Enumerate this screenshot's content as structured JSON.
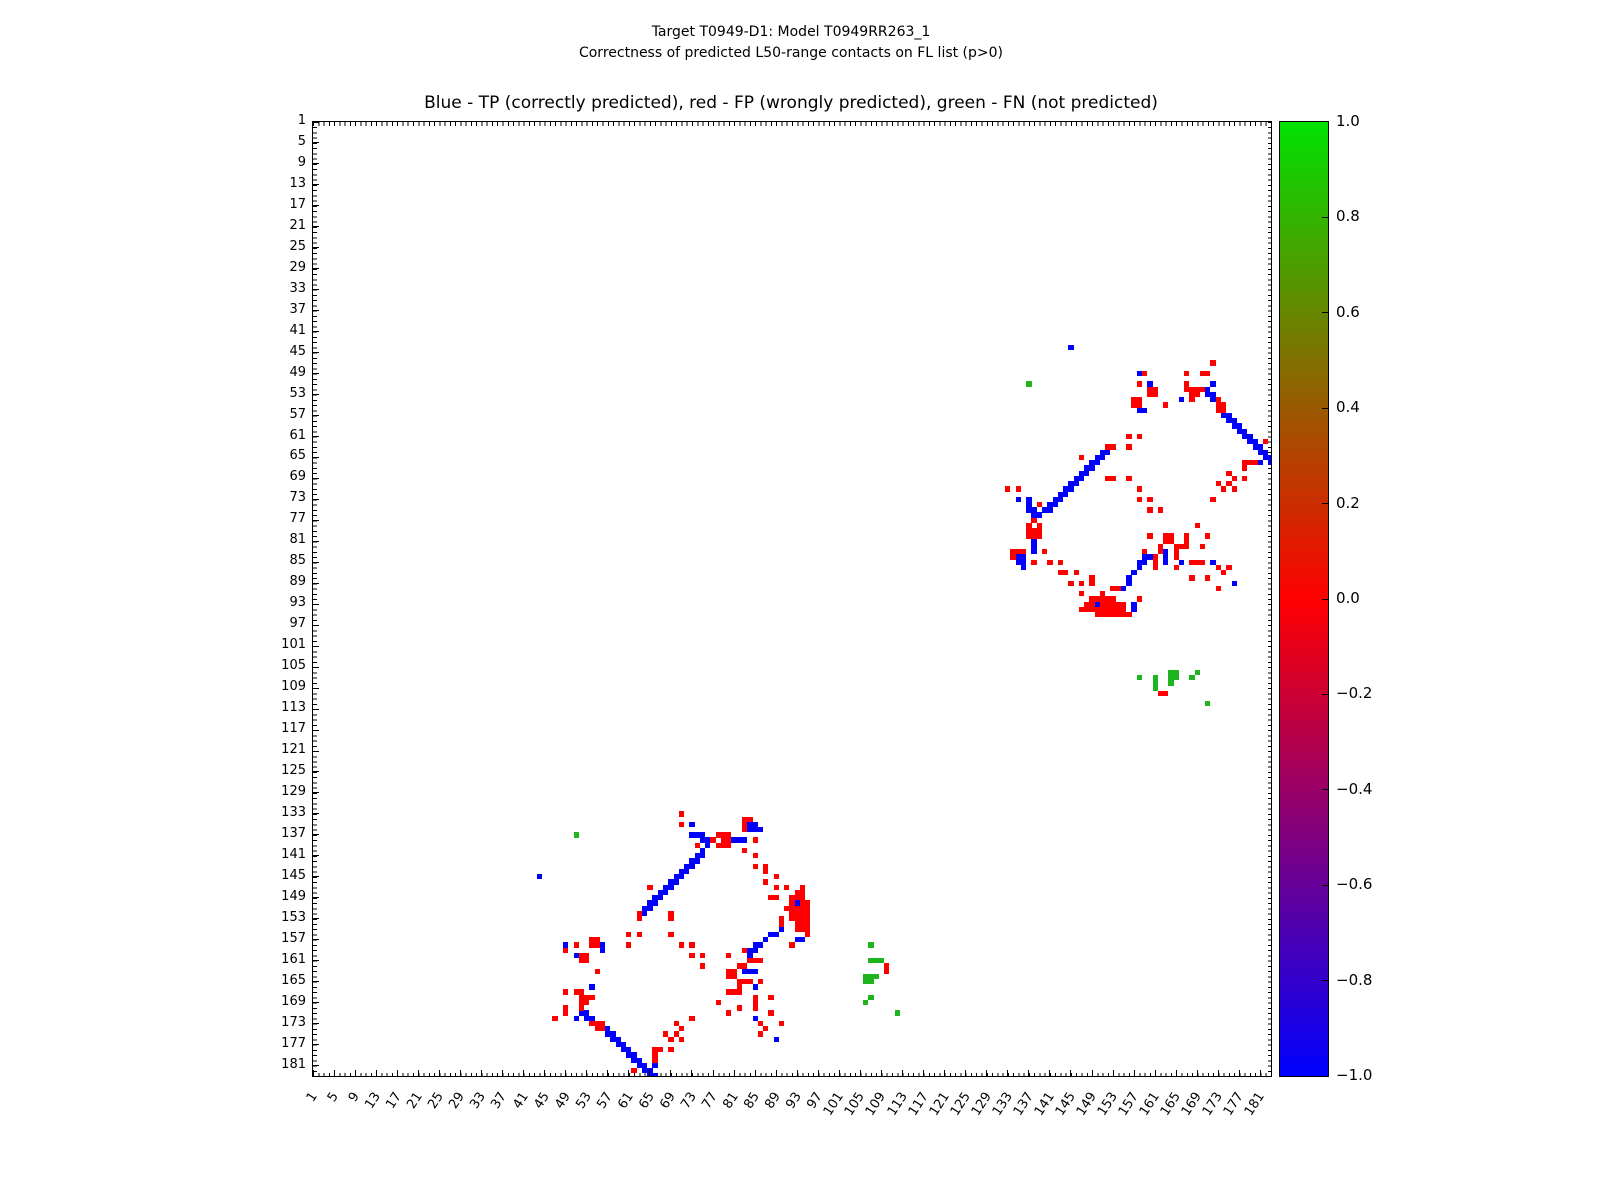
{
  "figure": {
    "suptitle_line1": "Target T0949-D1: Model T0949RR263_1",
    "suptitle_line2": "Correctness of predicted L50-range contacts on FL list (p>0)",
    "axes_title": "Blue - TP (correctly predicted), red - FP (wrongly predicted), green - FN (not predicted)"
  },
  "chart_data": {
    "type": "heatmap",
    "title": "Blue - TP (correctly predicted), red - FP (wrongly predicted), green - FN (not predicted)",
    "xlabel": "",
    "ylabel": "",
    "axis_range": [
      1,
      183
    ],
    "grid": false,
    "symmetric": true,
    "x_tick_labels": [
      1,
      5,
      9,
      13,
      17,
      21,
      25,
      29,
      33,
      37,
      41,
      45,
      49,
      53,
      57,
      61,
      65,
      69,
      73,
      77,
      81,
      85,
      89,
      93,
      97,
      101,
      105,
      109,
      113,
      117,
      121,
      125,
      129,
      133,
      137,
      141,
      145,
      149,
      153,
      157,
      161,
      165,
      169,
      173,
      177,
      181
    ],
    "y_tick_labels": [
      1,
      5,
      9,
      13,
      17,
      21,
      25,
      29,
      33,
      37,
      41,
      45,
      49,
      53,
      57,
      61,
      65,
      69,
      73,
      77,
      81,
      85,
      89,
      93,
      97,
      101,
      105,
      109,
      113,
      117,
      121,
      125,
      129,
      133,
      137,
      141,
      145,
      149,
      153,
      157,
      161,
      165,
      169,
      173,
      177,
      181
    ],
    "colors": {
      "tp": "#0000ff",
      "fp": "#ff0000",
      "fn": "#1eb41e"
    },
    "classes": {
      "tp": "TP (correctly predicted)",
      "fp": "FP (wrongly predicted)",
      "fn": "FN (not predicted)"
    },
    "colorbar": {
      "min": -1.0,
      "max": 1.0,
      "tick_labels": [
        "1.0",
        "0.8",
        "0.6",
        "0.4",
        "0.2",
        "0.0",
        "−0.2",
        "−0.4",
        "−0.6",
        "−0.8",
        "−1.0"
      ],
      "tick_values": [
        1.0,
        0.8,
        0.6,
        0.4,
        0.2,
        0.0,
        -0.2,
        -0.4,
        -0.6,
        -0.8,
        -1.0
      ],
      "top_color": "#00e100",
      "mid_color": "#ff0000",
      "bottom_color": "#0000ff"
    },
    "contacts": {
      "tp": [
        [
          44,
          145
        ],
        [
          49,
          158
        ],
        [
          51,
          160
        ],
        [
          56,
          158
        ],
        [
          56,
          159
        ],
        [
          51,
          172
        ],
        [
          52,
          171
        ],
        [
          53,
          171
        ],
        [
          53,
          172
        ],
        [
          54,
          172
        ],
        [
          54,
          166
        ],
        [
          57,
          174
        ],
        [
          57,
          175
        ],
        [
          58,
          175
        ],
        [
          58,
          176
        ],
        [
          59,
          176
        ],
        [
          59,
          177
        ],
        [
          60,
          177
        ],
        [
          60,
          178
        ],
        [
          61,
          178
        ],
        [
          61,
          179
        ],
        [
          62,
          179
        ],
        [
          62,
          180
        ],
        [
          63,
          180
        ],
        [
          63,
          181
        ],
        [
          64,
          181
        ],
        [
          64,
          182
        ],
        [
          65,
          182
        ],
        [
          65,
          183
        ],
        [
          66,
          181
        ],
        [
          66,
          183
        ],
        [
          64,
          151
        ],
        [
          64,
          152
        ],
        [
          65,
          150
        ],
        [
          65,
          151
        ],
        [
          66,
          149
        ],
        [
          66,
          150
        ],
        [
          67,
          148
        ],
        [
          67,
          149
        ],
        [
          68,
          147
        ],
        [
          68,
          148
        ],
        [
          69,
          146
        ],
        [
          69,
          147
        ],
        [
          70,
          145
        ],
        [
          70,
          146
        ],
        [
          71,
          144
        ],
        [
          71,
          145
        ],
        [
          72,
          143
        ],
        [
          72,
          144
        ],
        [
          73,
          142
        ],
        [
          73,
          143
        ],
        [
          74,
          141
        ],
        [
          74,
          142
        ],
        [
          75,
          140
        ],
        [
          75,
          141
        ],
        [
          73,
          135
        ],
        [
          73,
          137
        ],
        [
          74,
          137
        ],
        [
          75,
          137
        ],
        [
          75,
          138
        ],
        [
          76,
          138
        ],
        [
          76,
          139
        ],
        [
          81,
          138
        ],
        [
          82,
          138
        ],
        [
          83,
          138
        ],
        [
          84,
          135
        ],
        [
          84,
          136
        ],
        [
          85,
          135
        ],
        [
          85,
          136
        ],
        [
          86,
          136
        ],
        [
          83,
          163
        ],
        [
          84,
          163
        ],
        [
          85,
          163
        ],
        [
          85,
          166
        ],
        [
          85,
          172
        ],
        [
          89,
          176
        ],
        [
          84,
          159
        ],
        [
          84,
          160
        ],
        [
          85,
          158
        ],
        [
          85,
          159
        ],
        [
          86,
          158
        ],
        [
          87,
          157
        ],
        [
          88,
          156
        ],
        [
          89,
          156
        ],
        [
          90,
          155
        ],
        [
          93,
          150
        ],
        [
          93,
          157
        ],
        [
          94,
          157
        ]
      ],
      "fp": [
        [
          49,
          159
        ],
        [
          51,
          158
        ],
        [
          52,
          160
        ],
        [
          52,
          161
        ],
        [
          53,
          160
        ],
        [
          53,
          161
        ],
        [
          54,
          157
        ],
        [
          54,
          158
        ],
        [
          55,
          157
        ],
        [
          55,
          158
        ],
        [
          61,
          156
        ],
        [
          61,
          158
        ],
        [
          63,
          156
        ],
        [
          69,
          153
        ],
        [
          69,
          156
        ],
        [
          71,
          158
        ],
        [
          73,
          158
        ],
        [
          73,
          160
        ],
        [
          75,
          160
        ],
        [
          75,
          162
        ],
        [
          55,
          163
        ],
        [
          47,
          172
        ],
        [
          49,
          167
        ],
        [
          49,
          170
        ],
        [
          49,
          171
        ],
        [
          51,
          167
        ],
        [
          52,
          167
        ],
        [
          52,
          168
        ],
        [
          52,
          169
        ],
        [
          52,
          170
        ],
        [
          53,
          168
        ],
        [
          53,
          169
        ],
        [
          54,
          168
        ],
        [
          54,
          173
        ],
        [
          55,
          173
        ],
        [
          55,
          174
        ],
        [
          56,
          173
        ],
        [
          56,
          174
        ],
        [
          62,
          182
        ],
        [
          66,
          178
        ],
        [
          66,
          179
        ],
        [
          66,
          180
        ],
        [
          67,
          178
        ],
        [
          68,
          175
        ],
        [
          69,
          176
        ],
        [
          69,
          178
        ],
        [
          70,
          173
        ],
        [
          70,
          175
        ],
        [
          71,
          174
        ],
        [
          71,
          176
        ],
        [
          73,
          172
        ],
        [
          63,
          152
        ],
        [
          63,
          153
        ],
        [
          65,
          147
        ],
        [
          69,
          152
        ],
        [
          74,
          139
        ],
        [
          71,
          133
        ],
        [
          71,
          135
        ],
        [
          77,
          138
        ],
        [
          78,
          137
        ],
        [
          78,
          139
        ],
        [
          79,
          137
        ],
        [
          79,
          138
        ],
        [
          79,
          139
        ],
        [
          80,
          137
        ],
        [
          80,
          138
        ],
        [
          80,
          139
        ],
        [
          83,
          134
        ],
        [
          83,
          135
        ],
        [
          83,
          136
        ],
        [
          83,
          140
        ],
        [
          84,
          134
        ],
        [
          85,
          138
        ],
        [
          85,
          141
        ],
        [
          85,
          143
        ],
        [
          87,
          143
        ],
        [
          87,
          144
        ],
        [
          87,
          146
        ],
        [
          88,
          149
        ],
        [
          89,
          145
        ],
        [
          89,
          147
        ],
        [
          89,
          149
        ],
        [
          90,
          153
        ],
        [
          90,
          154
        ],
        [
          91,
          147
        ],
        [
          91,
          151
        ],
        [
          94,
          147
        ],
        [
          78,
          169
        ],
        [
          80,
          160
        ],
        [
          80,
          163
        ],
        [
          80,
          164
        ],
        [
          80,
          167
        ],
        [
          80,
          171
        ],
        [
          81,
          163
        ],
        [
          81,
          164
        ],
        [
          81,
          167
        ],
        [
          82,
          162
        ],
        [
          82,
          165
        ],
        [
          82,
          166
        ],
        [
          82,
          167
        ],
        [
          82,
          170
        ],
        [
          83,
          159
        ],
        [
          83,
          162
        ],
        [
          83,
          165
        ],
        [
          84,
          161
        ],
        [
          84,
          165
        ],
        [
          85,
          161
        ],
        [
          86,
          161
        ],
        [
          86,
          165
        ],
        [
          85,
          168
        ],
        [
          85,
          169
        ],
        [
          85,
          170
        ],
        [
          86,
          173
        ],
        [
          86,
          175
        ],
        [
          87,
          174
        ],
        [
          88,
          168
        ],
        [
          88,
          171
        ],
        [
          90,
          173
        ],
        [
          92,
          158
        ],
        [
          110,
          162
        ],
        [
          110,
          163
        ],
        [
          92,
          149
        ],
        [
          92,
          150
        ],
        [
          92,
          151
        ],
        [
          92,
          152
        ],
        [
          92,
          153
        ],
        [
          93,
          148
        ],
        [
          93,
          149
        ],
        [
          93,
          151
        ],
        [
          93,
          152
        ],
        [
          93,
          153
        ],
        [
          93,
          154
        ],
        [
          93,
          155
        ],
        [
          94,
          148
        ],
        [
          94,
          149
        ],
        [
          94,
          150
        ],
        [
          94,
          151
        ],
        [
          94,
          152
        ],
        [
          94,
          153
        ],
        [
          94,
          154
        ],
        [
          94,
          155
        ],
        [
          95,
          150
        ],
        [
          95,
          151
        ],
        [
          95,
          152
        ],
        [
          95,
          153
        ],
        [
          95,
          154
        ],
        [
          95,
          155
        ],
        [
          95,
          156
        ]
      ],
      "fn": [
        [
          51,
          137
        ],
        [
          112,
          171
        ],
        [
          107,
          158
        ],
        [
          107,
          161
        ],
        [
          108,
          161
        ],
        [
          109,
          161
        ],
        [
          106,
          164
        ],
        [
          106,
          165
        ],
        [
          107,
          164
        ],
        [
          107,
          165
        ],
        [
          108,
          164
        ],
        [
          106,
          169
        ],
        [
          107,
          168
        ]
      ]
    }
  }
}
